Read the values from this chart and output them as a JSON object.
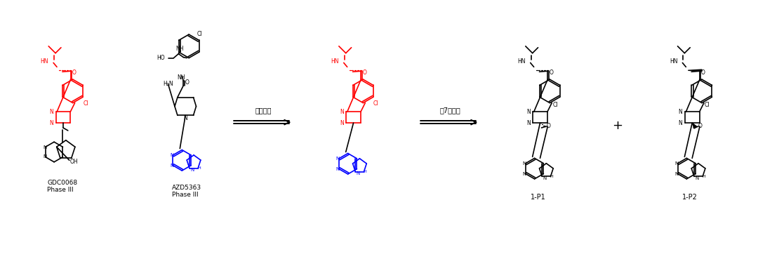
{
  "title": "",
  "background_color": "#ffffff",
  "arrow1_label": "分子杂交",
  "arrow2_label": "成7元氧环",
  "label_GDC": "GDC0068\nPhase III",
  "label_AZD": "AZD5363\nPhase III",
  "label_P1": "1-P1",
  "label_P2": "1-P2",
  "plus_sign": "+",
  "fig_width": 10.8,
  "fig_height": 3.69,
  "dpi": 100
}
